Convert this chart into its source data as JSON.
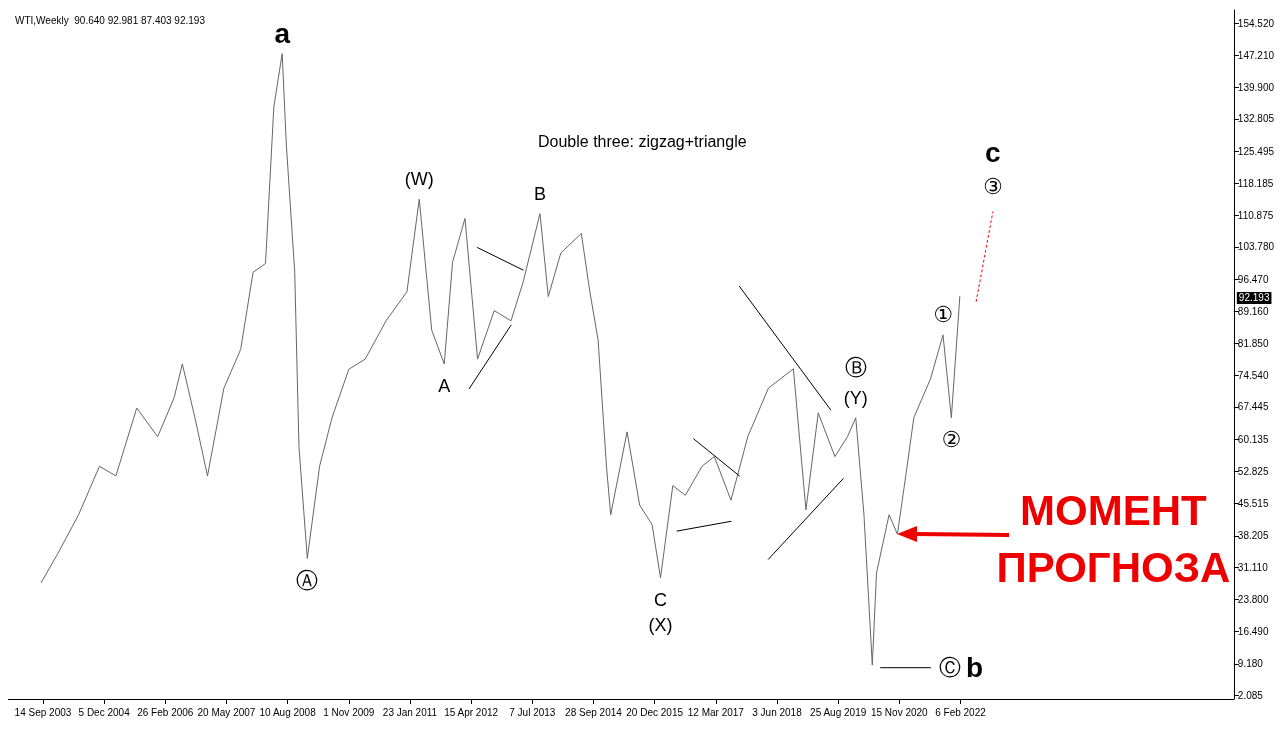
{
  "chart_data": {
    "type": "line",
    "title": "WTI,Weekly  90.640 92.981 87.403 92.193",
    "subtitle": "Double three: zigzag+triangle",
    "xlim": [
      "2003-01-01",
      "2027-08-01"
    ],
    "xticks": [
      {
        "value": "2003-09-14",
        "label": "14 Sep 2003"
      },
      {
        "value": "2004-12-05",
        "label": "5 Dec 2004"
      },
      {
        "value": "2006-02-26",
        "label": "26 Feb 2006"
      },
      {
        "value": "2007-05-20",
        "label": "20 May 2007"
      },
      {
        "value": "2008-08-10",
        "label": "10 Aug 2008"
      },
      {
        "value": "2009-11-01",
        "label": "1 Nov 2009"
      },
      {
        "value": "2011-01-23",
        "label": "23 Jan 2011"
      },
      {
        "value": "2012-04-15",
        "label": "15 Apr 2012"
      },
      {
        "value": "2013-07-07",
        "label": "7 Jul 2013"
      },
      {
        "value": "2014-09-28",
        "label": "28 Sep 2014"
      },
      {
        "value": "2015-12-20",
        "label": "20 Dec 2015"
      },
      {
        "value": "2017-03-12",
        "label": "12 Mar 2017"
      },
      {
        "value": "2018-06-03",
        "label": "3 Jun 2018"
      },
      {
        "value": "2019-08-25",
        "label": "25 Aug 2019"
      },
      {
        "value": "2020-11-15",
        "label": "15 Nov 2020"
      },
      {
        "value": "2022-02-06",
        "label": "6 Feb 2022"
      }
    ],
    "ylim": [
      1.2,
      157.5
    ],
    "yticks": [
      {
        "value": 2.085,
        "label": "2.085"
      },
      {
        "value": 9.18,
        "label": "9.180"
      },
      {
        "value": 16.49,
        "label": "16.490"
      },
      {
        "value": 23.8,
        "label": "23.800"
      },
      {
        "value": 31.11,
        "label": "31.110"
      },
      {
        "value": 38.205,
        "label": "38.205"
      },
      {
        "value": 45.515,
        "label": "45.515"
      },
      {
        "value": 52.825,
        "label": "52.825"
      },
      {
        "value": 60.135,
        "label": "60.135"
      },
      {
        "value": 67.445,
        "label": "67.445"
      },
      {
        "value": 74.54,
        "label": "74.540"
      },
      {
        "value": 81.85,
        "label": "81.850"
      },
      {
        "value": 89.16,
        "label": "89.160"
      },
      {
        "value": 96.47,
        "label": "96.470"
      },
      {
        "value": 103.78,
        "label": "103.780"
      },
      {
        "value": 110.875,
        "label": "110.875"
      },
      {
        "value": 118.185,
        "label": "118.185"
      },
      {
        "value": 125.495,
        "label": "125.495"
      },
      {
        "value": 132.805,
        "label": "132.805"
      },
      {
        "value": 139.9,
        "label": "139.900"
      },
      {
        "value": 147.21,
        "label": "147.210"
      },
      {
        "value": 154.52,
        "label": "154.520"
      }
    ],
    "grid": false,
    "marker": "none",
    "line_style": "solid",
    "series": [
      {
        "color": "#666666",
        "x": [
          "2003-09",
          "2004-01",
          "2004-06",
          "2004-11",
          "2005-03",
          "2005-08",
          "2006-01",
          "2006-05",
          "2006-07",
          "2006-10",
          "2007-01",
          "2007-05",
          "2007-09",
          "2007-12",
          "2008-03",
          "2008-05",
          "2008-07",
          "2008-08",
          "2008-10",
          "2008-11",
          "2009-01",
          "2009-04",
          "2009-07",
          "2009-11",
          "2010-03",
          "2010-08",
          "2011-01",
          "2011-04",
          "2011-07",
          "2011-10",
          "2011-12",
          "2012-03",
          "2012-06",
          "2012-10",
          "2013-02",
          "2013-05",
          "2013-09",
          "2013-11",
          "2014-02",
          "2014-07",
          "2014-09",
          "2014-11",
          "2015-01",
          "2015-02",
          "2015-06",
          "2015-09",
          "2015-12",
          "2016-02",
          "2016-05",
          "2016-08",
          "2016-12",
          "2017-03",
          "2017-07",
          "2017-11",
          "2018-04",
          "2018-10",
          "2019-01",
          "2019-04",
          "2019-08",
          "2019-11",
          "2020-01",
          "2020-03",
          "2020-05",
          "2020-06",
          "2020-09",
          "2020-11",
          "2021-01",
          "2021-03",
          "2021-07",
          "2021-10",
          "2021-12",
          "2022-02"
        ],
        "values": [
          27.6,
          34.2,
          43,
          54,
          51.8,
          67.2,
          60.7,
          69.5,
          77.2,
          65,
          51.8,
          71.7,
          80.5,
          98,
          100,
          135.5,
          147.6,
          126.7,
          98,
          58.4,
          33.1,
          54,
          65,
          76,
          78.3,
          87,
          93.6,
          114.6,
          84.9,
          77.2,
          100.3,
          110.2,
          78.3,
          89.3,
          87,
          95.8,
          111.3,
          92.5,
          102.4,
          106.8,
          93.7,
          82.6,
          54,
          43,
          61.8,
          45.2,
          40.8,
          28.7,
          49.6,
          47.4,
          54,
          56.2,
          46.3,
          60.7,
          71.7,
          76.1,
          44.1,
          66.1,
          56.2,
          60.7,
          65,
          43,
          8.9,
          29.8,
          43,
          38.6,
          51.8,
          65,
          73.8,
          83.8,
          65,
          92.5
        ]
      },
      {
        "color": "#000000",
        "x": [
          "2012-06",
          "2013-05"
        ],
        "values": [
          103.6,
          98.5
        ]
      },
      {
        "color": "#000000",
        "x": [
          "2012-04",
          "2013-02"
        ],
        "values": [
          71.6,
          86
        ]
      },
      {
        "color": "#000000",
        "x": [
          "2016-06",
          "2017-07"
        ],
        "values": [
          39.3,
          41.5
        ]
      },
      {
        "color": "#000000",
        "x": [
          "2016-10",
          "2017-09"
        ],
        "values": [
          60.2,
          51.8
        ]
      },
      {
        "color": "#000000",
        "x": [
          "2017-09",
          "2019-07"
        ],
        "values": [
          94.8,
          66.8
        ]
      },
      {
        "color": "#000000",
        "x": [
          "2018-04",
          "2019-10"
        ],
        "values": [
          32.9,
          51.2
        ]
      },
      {
        "color": "#000000",
        "x": [
          "2020-07",
          "2021-07"
        ],
        "values": [
          8.3,
          8.3
        ]
      },
      {
        "color": "#ff0000",
        "line_style": "dotted",
        "x": [
          "2022-06",
          "2022-10"
        ],
        "values": [
          91.4,
          111.7
        ]
      }
    ],
    "annotations": [
      {
        "text": "a",
        "x": "2008-07",
        "y": 147.6
      },
      {
        "text": "(W)",
        "x": "2011-04",
        "y": 114.6
      },
      {
        "text": "B",
        "x": "2013-09",
        "y": 111.3
      },
      {
        "text": "A",
        "x": "2011-10",
        "y": 77.2
      },
      {
        "text": "Ⓐ",
        "x": "2009-01",
        "y": 33.1
      },
      {
        "text": "C",
        "x": "2016-02",
        "y": 28.7
      },
      {
        "text": "(X)",
        "x": "2016-02",
        "y": 28.7
      },
      {
        "text": "(Y)",
        "x": "2020-01",
        "y": 65
      },
      {
        "text": "Ⓑ",
        "x": "2020-01",
        "y": 65
      },
      {
        "text": "①",
        "x": "2021-10",
        "y": 83.8
      },
      {
        "text": "②",
        "x": "2021-12",
        "y": 65
      },
      {
        "text": "③",
        "x": "2022-10",
        "y": 111.7
      },
      {
        "text": "c",
        "x": "2022-10",
        "y": 111.7
      },
      {
        "text": "Ⓒ",
        "x": "2021-07",
        "y": 8.3
      },
      {
        "text": "b",
        "x": "2021-07",
        "y": 8.3
      },
      {
        "text": "МОМЕНТ ПРОГНОЗА",
        "x": "2020-11",
        "y": 38.6
      },
      {
        "text": "92.193",
        "y": 92.193
      }
    ]
  }
}
